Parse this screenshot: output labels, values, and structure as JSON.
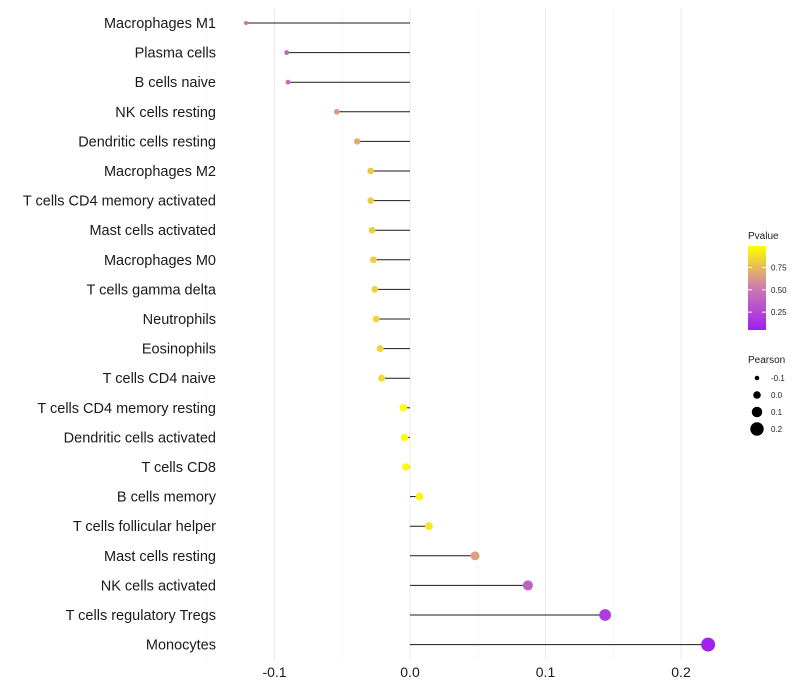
{
  "chart_data": {
    "type": "lollipop",
    "title": "",
    "xlabel": "",
    "ylabel": "",
    "xlim": [
      -0.136,
      0.23
    ],
    "x_ticks": [
      -0.1,
      0.0,
      0.1,
      0.2
    ],
    "x_tick_labels": [
      "-0.1",
      "0.0",
      "0.1",
      "0.2"
    ],
    "grid": true,
    "categories": [
      "Macrophages M1",
      "Plasma cells",
      "B cells naive",
      "NK cells resting",
      "Dendritic cells resting",
      "Macrophages M2",
      "T cells CD4 memory activated",
      "Mast cells activated",
      "Macrophages M0",
      "T cells gamma delta",
      "Neutrophils",
      "Eosinophils",
      "T cells CD4 naive",
      "T cells CD4 memory resting",
      "Dendritic cells activated",
      "T cells CD8",
      "B cells memory",
      "T cells follicular helper",
      "Mast cells resting",
      "NK cells activated",
      "T cells regulatory  Tregs",
      "Monocytes"
    ],
    "pearson": [
      -0.121,
      -0.091,
      -0.09,
      -0.054,
      -0.039,
      -0.029,
      -0.029,
      -0.028,
      -0.027,
      -0.026,
      -0.025,
      -0.022,
      -0.021,
      -0.005,
      -0.004,
      -0.003,
      0.007,
      0.014,
      0.048,
      0.087,
      0.144,
      0.22
    ],
    "pvalue": [
      0.48,
      0.42,
      0.44,
      0.64,
      0.7,
      0.8,
      0.81,
      0.81,
      0.82,
      0.82,
      0.84,
      0.85,
      0.86,
      0.98,
      0.98,
      0.98,
      0.95,
      0.91,
      0.66,
      0.38,
      0.19,
      0.06
    ],
    "legend_position": "right",
    "color_legend": {
      "title": "Pvalue",
      "ticks": [
        "0.75",
        "0.50",
        "0.25"
      ],
      "low_color": "#a020f0",
      "mid_color": "#cd7ab0",
      "high_color": "#ffff00"
    },
    "size_legend": {
      "title": "Pearson",
      "entries": [
        "-0.1",
        "0.0",
        "0.1",
        "0.2"
      ]
    }
  }
}
